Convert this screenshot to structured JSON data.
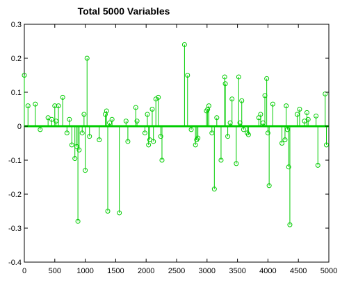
{
  "chart_data": {
    "type": "stem",
    "title": "Total 5000 Variables",
    "xlim": [
      0,
      5000
    ],
    "ylim": [
      -0.4,
      0.3
    ],
    "x_ticks": [
      0,
      500,
      1000,
      1500,
      2000,
      2500,
      3000,
      3500,
      4000,
      4500,
      5000
    ],
    "x_tick_labels": [
      "0",
      "500",
      "1000",
      "1500",
      "2000",
      "2500",
      "3000",
      "3500",
      "4000",
      "4500",
      "5000"
    ],
    "y_ticks": [
      0.3,
      0.2,
      0.1,
      0,
      -0.1,
      -0.2,
      -0.3,
      -0.4
    ],
    "y_tick_labels": [
      "0.3",
      "0.2",
      "0.1",
      "0",
      "-0.1",
      "-0.2",
      "-0.3",
      "-0.4"
    ],
    "grid": false,
    "marker": "circle",
    "color": "#00cc00",
    "baseline_color": "#00cc00",
    "points": [
      [
        0,
        0.15
      ],
      [
        60,
        0.06
      ],
      [
        180,
        0.065
      ],
      [
        260,
        -0.01
      ],
      [
        390,
        0.025
      ],
      [
        450,
        0.02
      ],
      [
        500,
        0.06
      ],
      [
        520,
        0.015
      ],
      [
        560,
        0.06
      ],
      [
        630,
        0.085
      ],
      [
        700,
        -0.02
      ],
      [
        740,
        0.02
      ],
      [
        780,
        -0.055
      ],
      [
        830,
        -0.095
      ],
      [
        860,
        -0.06
      ],
      [
        880,
        -0.28
      ],
      [
        900,
        -0.07
      ],
      [
        950,
        -0.02
      ],
      [
        980,
        0.035
      ],
      [
        1000,
        -0.13
      ],
      [
        1030,
        0.2
      ],
      [
        1070,
        -0.03
      ],
      [
        1230,
        -0.04
      ],
      [
        1330,
        0.035
      ],
      [
        1350,
        0.045
      ],
      [
        1370,
        -0.25
      ],
      [
        1400,
        0.01
      ],
      [
        1440,
        0.02
      ],
      [
        1560,
        -0.255
      ],
      [
        1670,
        0.015
      ],
      [
        1700,
        -0.045
      ],
      [
        1830,
        0.055
      ],
      [
        1850,
        0.015
      ],
      [
        1980,
        -0.02
      ],
      [
        2020,
        0.035
      ],
      [
        2040,
        -0.055
      ],
      [
        2060,
        -0.04
      ],
      [
        2100,
        0.05
      ],
      [
        2120,
        -0.045
      ],
      [
        2160,
        0.08
      ],
      [
        2200,
        0.085
      ],
      [
        2240,
        -0.03
      ],
      [
        2260,
        -0.1
      ],
      [
        2630,
        0.24
      ],
      [
        2680,
        0.15
      ],
      [
        2740,
        -0.01
      ],
      [
        2810,
        -0.055
      ],
      [
        2830,
        -0.04
      ],
      [
        2850,
        -0.035
      ],
      [
        2990,
        0.045
      ],
      [
        3010,
        0.05
      ],
      [
        3030,
        0.06
      ],
      [
        3080,
        -0.02
      ],
      [
        3120,
        -0.185
      ],
      [
        3160,
        0.025
      ],
      [
        3230,
        -0.1
      ],
      [
        3290,
        0.145
      ],
      [
        3300,
        0.125
      ],
      [
        3340,
        -0.03
      ],
      [
        3380,
        0.01
      ],
      [
        3410,
        0.08
      ],
      [
        3480,
        -0.11
      ],
      [
        3520,
        0.145
      ],
      [
        3540,
        0.01
      ],
      [
        3570,
        0.075
      ],
      [
        3600,
        -0.01
      ],
      [
        3660,
        -0.02
      ],
      [
        3680,
        -0.025
      ],
      [
        3850,
        0.025
      ],
      [
        3880,
        0.035
      ],
      [
        3920,
        0.01
      ],
      [
        3950,
        0.09
      ],
      [
        3980,
        0.14
      ],
      [
        4000,
        -0.02
      ],
      [
        4020,
        -0.175
      ],
      [
        4080,
        0.065
      ],
      [
        4230,
        -0.05
      ],
      [
        4280,
        -0.04
      ],
      [
        4300,
        0.06
      ],
      [
        4320,
        -0.01
      ],
      [
        4340,
        -0.12
      ],
      [
        4360,
        -0.29
      ],
      [
        4480,
        0.035
      ],
      [
        4520,
        0.05
      ],
      [
        4600,
        0.015
      ],
      [
        4640,
        0.04
      ],
      [
        4660,
        0.02
      ],
      [
        4790,
        0.03
      ],
      [
        4820,
        -0.115
      ],
      [
        4940,
        0.095
      ],
      [
        4960,
        -0.055
      ]
    ]
  }
}
